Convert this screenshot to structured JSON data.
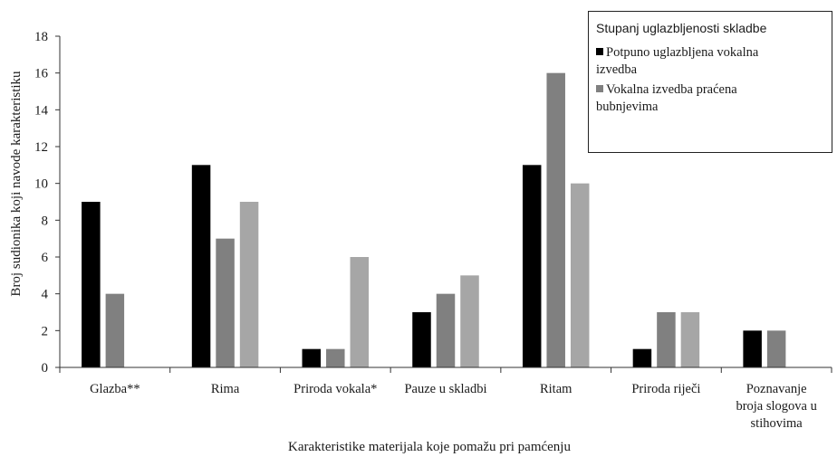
{
  "chart_data": {
    "type": "bar",
    "title": "",
    "xlabel": "Karakteristike materijala koje pomažu pri pamćenju",
    "ylabel": "Broj sudionika koji navode karakteristiku",
    "ylim": [
      0,
      18
    ],
    "yticks": [
      0,
      2,
      4,
      6,
      8,
      10,
      12,
      14,
      16,
      18
    ],
    "grid": false,
    "legend_placement": "top-right",
    "legend_title": "Stupanj uglazbljenosti skladbe",
    "categories": [
      "Glazba**",
      "Rima",
      "Priroda vokala*",
      "Pauze u skladbi",
      "Ritam",
      "Priroda riječi",
      "Poznavanje broja slogova u stihovima"
    ],
    "category_label_lines": [
      [
        "Glazba**"
      ],
      [
        "Rima"
      ],
      [
        "Priroda vokala*"
      ],
      [
        "Pauze u skladbi"
      ],
      [
        "Ritam"
      ],
      [
        "Priroda riječi"
      ],
      [
        "Poznavanje",
        "broja slogova u",
        "stihovima"
      ]
    ],
    "series": [
      {
        "name": "Potpuno uglazbljena vokalna izvedba",
        "legend_lines": [
          "Potpuno uglazbljena vokalna",
          "izvedba"
        ],
        "color": "#000000",
        "values": [
          9,
          11,
          1,
          3,
          11,
          1,
          2
        ]
      },
      {
        "name": "Vokalna izvedba praćena bubnjevima",
        "legend_lines": [
          "Vokalna izvedba praćena",
          "bubnjevima"
        ],
        "color": "#808080",
        "values": [
          4,
          7,
          1,
          4,
          16,
          3,
          2
        ]
      },
      {
        "values": [
          0,
          9,
          6,
          5,
          10,
          3,
          0
        ],
        "color": "#a6a6a6"
      }
    ]
  }
}
